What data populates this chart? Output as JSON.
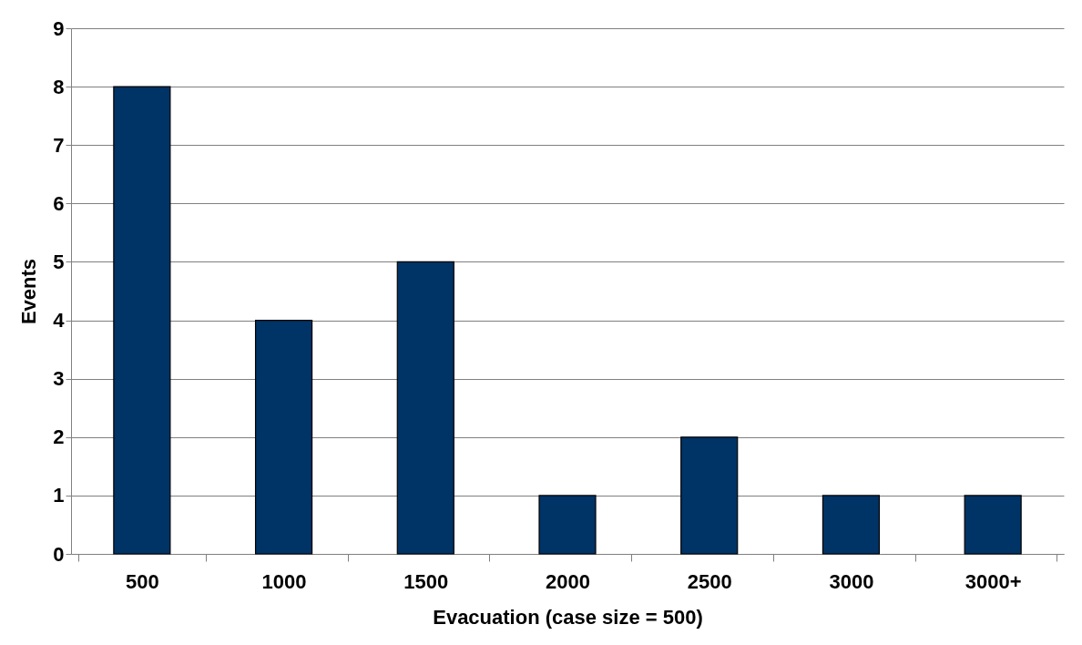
{
  "chart_data": {
    "type": "bar",
    "xlabel": "Evacuation (case size = 500)",
    "ylabel": "Events",
    "categories": [
      "500",
      "1000",
      "1500",
      "2000",
      "2500",
      "3000",
      "3000+"
    ],
    "values": [
      8,
      4,
      5,
      1,
      2,
      1,
      1
    ],
    "color": "#003366",
    "ylim": [
      0,
      9
    ],
    "yticks": [
      0,
      1,
      2,
      3,
      4,
      5,
      6,
      7,
      8,
      9
    ],
    "grid": "y"
  }
}
